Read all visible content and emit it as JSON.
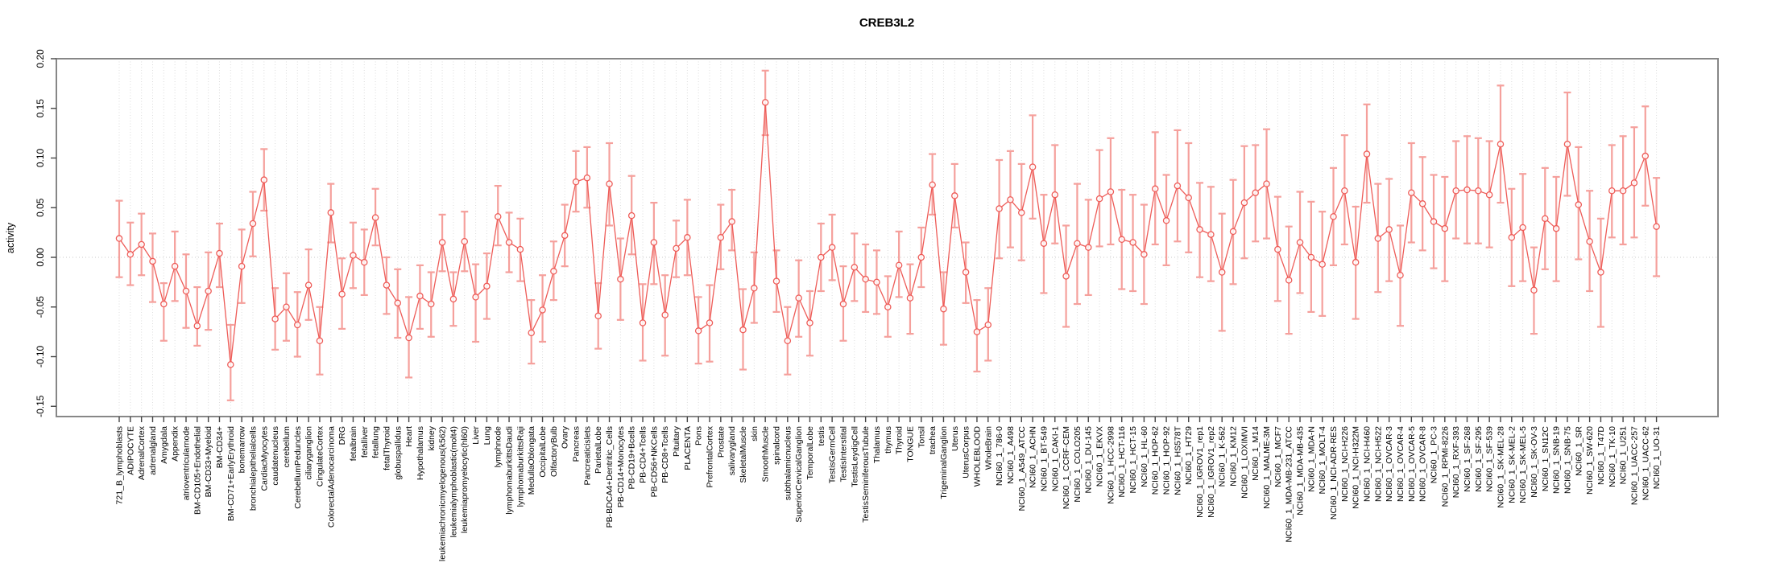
{
  "chart_data": {
    "type": "line",
    "subtype": "errorbar-profile",
    "title": "CREB3L2",
    "xlabel": "",
    "ylabel": "activity",
    "ylim": [
      -0.16,
      0.205
    ],
    "yticks": [
      0.2,
      0.15,
      0.1,
      0.05,
      0.0,
      -0.05,
      -0.1,
      -0.15
    ],
    "ytick_labels": [
      "0.20",
      "0.15",
      "0.10",
      "0.05",
      "0.00",
      "-0.05",
      "-0.10",
      "-0.15"
    ],
    "grid": "vertical-dotted-per-category, dotted zero line",
    "legend": "none",
    "marker": "open-circle",
    "categories": [
      "721_B_lymphoblasts",
      "ADIPOCYTE",
      "AdrenalCortex",
      "adrenalgland",
      "Amygdala",
      "Appendix",
      "atrioventricularnode",
      "BM-CD105+Endothelial",
      "BM-CD33+Myeloid",
      "BM-CD34+",
      "BM-CD71+EarlyErythroid",
      "bonemarrow",
      "bronchialepithelialcells",
      "CardiacMyocytes",
      "caudatenucleus",
      "cerebellum",
      "CerebellumPeduncles",
      "ciliaryganglion",
      "CingulateCortex",
      "ColorectalAdenocarcinoma",
      "DRG",
      "fetalbrain",
      "fetalliver",
      "fetallung",
      "fetalThyroid",
      "globuspallidus",
      "Heart",
      "Hypothalamus",
      "kidney",
      "leukemiachronicmyelogenous(k562)",
      "leukemialymphoblastic(molt4)",
      "leukemiapromyelocytic(hl60)",
      "Liver",
      "Lung",
      "lymphnode",
      "lymphomaburkittsDaudi",
      "lymphomaburkittsRaji",
      "MedullaOblongata",
      "OccipitalLobe",
      "OlfactoryBulb",
      "Ovary",
      "Pancreas",
      "Pancreaticislets",
      "ParietalLobe",
      "PB-BDCA4+Dentritic_Cells",
      "PB-CD14+Monocytes",
      "PB-CD19+Bcells",
      "PB-CD4+Tcells",
      "PB-CD56+NKCells",
      "PB-CD8+Tcells",
      "Pituitary",
      "PLACENTA",
      "Pons",
      "PrefrontalCortex",
      "Prostate",
      "salivarygland",
      "SkeletalMuscle",
      "skin",
      "SmoothMuscle",
      "spinalcord",
      "subthalamicnucleus",
      "SuperiorCervicalGanglion",
      "TemporalLobe",
      "testis",
      "TestisGermCell",
      "TestisInterstital",
      "TestisLeydigCell",
      "TestisSeminiferousTubule",
      "Thalamus",
      "thymus",
      "Thyroid",
      "TONGUE",
      "Tonsil",
      "trachea",
      "TrigeminalGanglion",
      "Uterus",
      "UterusCorpus",
      "WHOLEBLOOD",
      "WholeBrain",
      "NCI60_1_786-0",
      "NCI60_1_A498",
      "NCI60_1_A549_ATCC",
      "NCI60_1_ACHN",
      "NCI60_1_BT-549",
      "NCI60_1_CAKI-1",
      "NCI60_1_CCRF-CEM",
      "NCI60_1_COLO205",
      "NCI60_1_DU-145",
      "NCI60_1_EKVX",
      "NCI60_1_HCC-2998",
      "NCI60_1_HCT-116",
      "NCI60_1_HCT-15",
      "NCI60_1_HL-60",
      "NCI60_1_HOP-62",
      "NCI60_1_HOP-92",
      "NCI60_1_HS578T",
      "NCI60_1_HT29",
      "NCI60_1_IGROV1_rep1",
      "NCI60_1_IGROV1_rep2",
      "NCI60_1_K-562",
      "NCI60_1_KM12",
      "NCI60_1_LOXIMVI",
      "NCI60_1_M14",
      "NCI60_1_MALME-3M",
      "NCI60_1_MCF7",
      "NCI60_1_MDA-MB-231_ATCC",
      "NCI60_1_MDA-MB-435",
      "NCI60_1_MDA-N",
      "NCI60_1_MOLT-4",
      "NCI60_1_NCI-ADR-RES",
      "NCI60_1_NCI-H226",
      "NCI60_1_NCI-H322M",
      "NCI60_1_NCI-H460",
      "NCI60_1_NCI-H522",
      "NCI60_1_OVCAR-3",
      "NCI60_1_OVCAR-4",
      "NCI60_1_OVCAR-5",
      "NCI60_1_OVCAR-8",
      "NCI60_1_PC-3",
      "NCI60_1_RPMI-8226",
      "NCI60_1_RXF-393",
      "NCI60_1_SF-268",
      "NCI60_1_SF-295",
      "NCI60_1_SF-539",
      "NCI60_1_SK-MEL-28",
      "NCI60_1_SK-MEL-2",
      "NCI60_1_SK-MEL-5",
      "NCI60_1_SK-OV-3",
      "NCI60_1_SN12C",
      "NCI60_1_SNB-19",
      "NCI60_1_SNB-75",
      "NCI60_1_SR",
      "NCI60_1_SW-620",
      "NCI60_1_T47D",
      "NCI60_1_TK-10",
      "NCI60_1_U251",
      "NCI60_1_UACC-257",
      "NCI60_1_UACC-62",
      "NCI60_1_UO-31"
    ],
    "values": [
      0.019,
      0.003,
      0.013,
      -0.004,
      -0.047,
      -0.009,
      -0.034,
      -0.069,
      -0.034,
      0.004,
      -0.108,
      -0.009,
      0.034,
      0.078,
      -0.062,
      -0.05,
      -0.068,
      -0.028,
      -0.084,
      0.045,
      -0.037,
      0.002,
      -0.005,
      0.04,
      -0.028,
      -0.046,
      -0.081,
      -0.039,
      -0.047,
      0.015,
      -0.042,
      0.016,
      -0.04,
      -0.029,
      0.041,
      0.015,
      0.008,
      -0.076,
      -0.053,
      -0.014,
      0.022,
      0.076,
      0.08,
      -0.059,
      0.074,
      -0.022,
      0.042,
      -0.066,
      0.015,
      -0.058,
      0.009,
      0.02,
      -0.074,
      -0.066,
      0.02,
      0.036,
      -0.073,
      -0.031,
      0.156,
      -0.024,
      -0.084,
      -0.041,
      -0.066,
      0.0,
      0.01,
      -0.047,
      -0.01,
      -0.022,
      -0.025,
      -0.05,
      -0.008,
      -0.041,
      0.0,
      0.073,
      -0.052,
      0.062,
      -0.015,
      -0.075,
      -0.068,
      0.049,
      0.058,
      0.045,
      0.091,
      0.014,
      0.063,
      -0.019,
      0.014,
      0.01,
      0.059,
      0.066,
      0.018,
      0.015,
      0.003,
      0.069,
      0.037,
      0.072,
      0.06,
      0.028,
      0.023,
      -0.015,
      0.026,
      0.055,
      0.065,
      0.074,
      0.008,
      -0.023,
      0.015,
      0.0,
      -0.007,
      0.041,
      0.067,
      -0.005,
      0.104,
      0.019,
      0.028,
      -0.018,
      0.065,
      0.054,
      0.036,
      0.029,
      0.067,
      0.068,
      0.067,
      0.063,
      0.114,
      0.02,
      0.03,
      -0.033,
      0.039,
      0.029,
      0.114,
      0.053,
      0.016,
      -0.015,
      0.067,
      0.067,
      0.075,
      0.102,
      0.031
    ],
    "err_hi": [
      0.057,
      0.035,
      0.044,
      0.024,
      -0.026,
      0.026,
      0.003,
      -0.03,
      0.005,
      0.034,
      -0.068,
      0.028,
      0.066,
      0.109,
      -0.031,
      -0.016,
      -0.035,
      0.008,
      -0.05,
      0.074,
      -0.001,
      0.035,
      0.028,
      0.069,
      0.0,
      -0.012,
      -0.04,
      -0.008,
      -0.015,
      0.043,
      -0.015,
      0.046,
      -0.007,
      0.004,
      0.072,
      0.045,
      0.039,
      -0.043,
      -0.018,
      0.016,
      0.053,
      0.107,
      0.111,
      -0.026,
      0.115,
      0.019,
      0.082,
      -0.027,
      0.055,
      -0.018,
      0.037,
      0.058,
      -0.04,
      -0.028,
      0.053,
      0.068,
      -0.032,
      0.005,
      0.188,
      0.007,
      -0.05,
      -0.003,
      -0.034,
      0.034,
      0.043,
      -0.009,
      0.024,
      0.013,
      0.007,
      -0.019,
      0.026,
      -0.007,
      0.03,
      0.104,
      -0.015,
      0.094,
      0.015,
      -0.043,
      -0.031,
      0.098,
      0.107,
      0.094,
      0.143,
      0.063,
      0.113,
      0.032,
      0.074,
      0.058,
      0.108,
      0.12,
      0.068,
      0.063,
      0.053,
      0.126,
      0.083,
      0.128,
      0.115,
      0.075,
      0.071,
      0.044,
      0.078,
      0.112,
      0.113,
      0.129,
      0.061,
      0.031,
      0.066,
      0.056,
      0.046,
      0.09,
      0.123,
      0.051,
      0.154,
      0.074,
      0.079,
      0.032,
      0.115,
      0.101,
      0.083,
      0.081,
      0.117,
      0.122,
      0.12,
      0.117,
      0.173,
      0.069,
      0.084,
      0.01,
      0.09,
      0.081,
      0.166,
      0.111,
      0.067,
      0.039,
      0.113,
      0.122,
      0.131,
      0.152,
      0.08
    ],
    "err_lo": [
      -0.02,
      -0.028,
      -0.018,
      -0.045,
      -0.084,
      -0.044,
      -0.071,
      -0.089,
      -0.073,
      -0.03,
      -0.144,
      -0.046,
      0.001,
      0.047,
      -0.093,
      -0.084,
      -0.1,
      -0.063,
      -0.118,
      0.015,
      -0.072,
      -0.031,
      -0.038,
      0.012,
      -0.057,
      -0.081,
      -0.121,
      -0.072,
      -0.08,
      -0.014,
      -0.069,
      -0.014,
      -0.085,
      -0.062,
      0.012,
      -0.015,
      -0.024,
      -0.107,
      -0.085,
      -0.043,
      -0.009,
      0.046,
      0.05,
      -0.092,
      0.032,
      -0.063,
      0.003,
      -0.104,
      -0.027,
      -0.099,
      -0.02,
      -0.018,
      -0.107,
      -0.105,
      -0.012,
      0.007,
      -0.113,
      -0.066,
      0.123,
      -0.055,
      -0.118,
      -0.08,
      -0.099,
      -0.034,
      -0.023,
      -0.084,
      -0.044,
      -0.055,
      -0.057,
      -0.08,
      -0.04,
      -0.077,
      -0.03,
      0.043,
      -0.088,
      0.03,
      -0.046,
      -0.115,
      -0.104,
      -0.001,
      0.01,
      -0.003,
      0.039,
      -0.036,
      0.014,
      -0.07,
      -0.047,
      -0.038,
      0.011,
      0.013,
      -0.032,
      -0.034,
      -0.047,
      0.013,
      -0.008,
      0.016,
      0.005,
      -0.02,
      -0.024,
      -0.074,
      -0.027,
      -0.001,
      0.016,
      0.019,
      -0.044,
      -0.077,
      -0.036,
      -0.055,
      -0.059,
      -0.008,
      0.013,
      -0.062,
      0.055,
      -0.035,
      -0.024,
      -0.069,
      0.015,
      0.007,
      -0.011,
      -0.024,
      0.019,
      0.014,
      0.014,
      0.01,
      0.055,
      -0.029,
      -0.024,
      -0.077,
      -0.012,
      -0.024,
      0.062,
      -0.002,
      -0.034,
      -0.07,
      0.02,
      0.013,
      0.02,
      0.052,
      -0.019
    ],
    "colors": {
      "line": "#ee5c58",
      "point": "#ee5c58",
      "error_bar": "#f5a09c",
      "grid": "#dcdcdc",
      "zero_line": "#c9c9c9",
      "box": "#878787",
      "text": "#000000",
      "background": "#ffffff"
    }
  }
}
